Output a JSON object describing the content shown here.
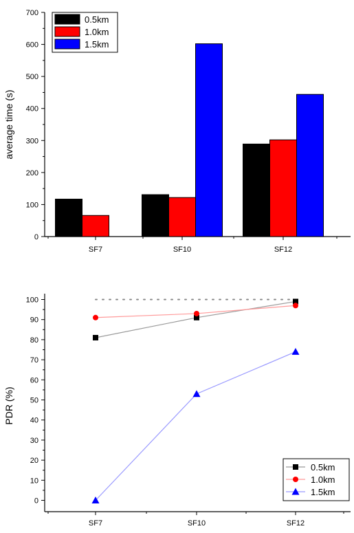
{
  "chart_data": [
    {
      "type": "bar",
      "categories": [
        "SF7",
        "SF10",
        "SF12"
      ],
      "series": [
        {
          "name": "0.5km",
          "color": "#000000",
          "values": [
            117,
            131,
            289
          ]
        },
        {
          "name": "1.0km",
          "color": "#ff0000",
          "values": [
            66,
            122,
            302
          ]
        },
        {
          "name": "1.5km",
          "color": "#0000ff",
          "values": [
            0,
            602,
            444
          ]
        }
      ],
      "ylabel": "average time (s)",
      "ylim": [
        0,
        700
      ],
      "yticks": [
        "0",
        "100",
        "200",
        "300",
        "400",
        "500",
        "600",
        "700"
      ],
      "grid": false,
      "legend_position": "top-left"
    },
    {
      "type": "line",
      "categories": [
        "SF7",
        "SF10",
        "SF12"
      ],
      "series": [
        {
          "name": "0.5km",
          "color": "#000000",
          "line_color": "#999999",
          "marker": "square",
          "values": [
            81,
            91,
            99
          ]
        },
        {
          "name": "1.0km",
          "color": "#ff0000",
          "line_color": "#ff9999",
          "marker": "circle",
          "values": [
            91,
            93,
            97
          ]
        },
        {
          "name": "1.5km",
          "color": "#0000ff",
          "line_color": "#9999ff",
          "marker": "triangle",
          "values": [
            0,
            53,
            74
          ]
        }
      ],
      "reference_line": {
        "value": 100,
        "style": "dotted",
        "color": "#888888"
      },
      "ylabel": "PDR (%)",
      "ylim": [
        -5,
        105
      ],
      "yticks": [
        "0",
        "10",
        "20",
        "30",
        "40",
        "50",
        "60",
        "70",
        "80",
        "90",
        "100"
      ],
      "grid": false,
      "legend_position": "bottom-right"
    }
  ]
}
